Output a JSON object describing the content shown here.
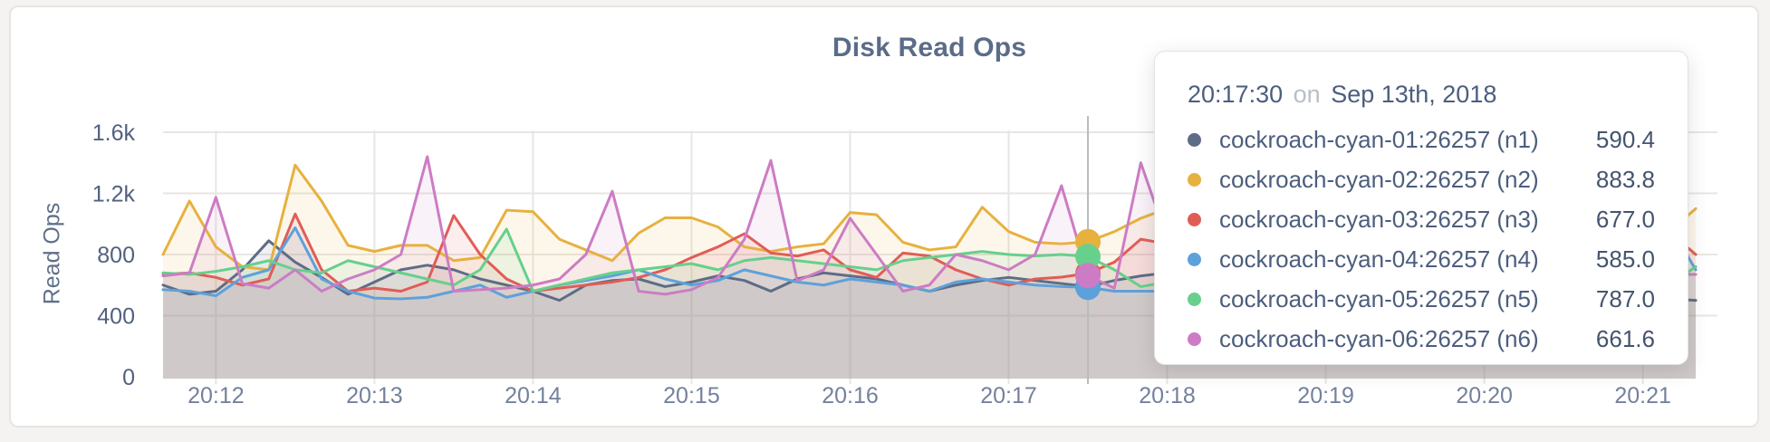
{
  "chart_data": {
    "type": "line",
    "title": "Disk Read Ops",
    "ylabel": "Read Ops",
    "x_start": "20:11:40",
    "x_interval_seconds": 10,
    "grid": true,
    "ylim": [
      0,
      1700
    ],
    "y_ticks": [
      {
        "value": 0,
        "label": "0"
      },
      {
        "value": 400,
        "label": "400"
      },
      {
        "value": 800,
        "label": "800"
      },
      {
        "value": 1200,
        "label": "1.2k"
      },
      {
        "value": 1600,
        "label": "1.6k"
      }
    ],
    "x_ticks": [
      {
        "index": 2,
        "label": "20:12"
      },
      {
        "index": 8,
        "label": "20:13"
      },
      {
        "index": 14,
        "label": "20:14"
      },
      {
        "index": 20,
        "label": "20:15"
      },
      {
        "index": 26,
        "label": "20:16"
      },
      {
        "index": 32,
        "label": "20:17"
      },
      {
        "index": 38,
        "label": "20:18"
      },
      {
        "index": 44,
        "label": "20:19"
      },
      {
        "index": 50,
        "label": "20:20"
      },
      {
        "index": 56,
        "label": "20:21"
      }
    ],
    "hover": {
      "index": 35,
      "line_color": "#bbbbbb"
    },
    "fill_opacity": 0.1,
    "series": [
      {
        "name": "cockroach-cyan-01:26257 (n1)",
        "color": "#5F6C87",
        "values": [
          600,
          540,
          560,
          700,
          890,
          750,
          650,
          540,
          620,
          700,
          730,
          700,
          640,
          600,
          560,
          500,
          600,
          630,
          640,
          590,
          620,
          660,
          630,
          560,
          640,
          680,
          660,
          640,
          600,
          560,
          600,
          630,
          650,
          630,
          610,
          590.4,
          630,
          660,
          680,
          650,
          600,
          560,
          520,
          560,
          600,
          580,
          560,
          600,
          640,
          620,
          580,
          600,
          620,
          580,
          540,
          520,
          500,
          510,
          500
        ]
      },
      {
        "name": "cockroach-cyan-02:26257 (n2)",
        "color": "#E7B13F",
        "values": [
          800,
          1150,
          850,
          720,
          700,
          1385,
          1150,
          860,
          820,
          860,
          860,
          760,
          780,
          1090,
          1080,
          900,
          830,
          760,
          940,
          1040,
          1040,
          980,
          850,
          820,
          850,
          870,
          1075,
          1060,
          880,
          830,
          850,
          1110,
          950,
          880,
          870,
          883.8,
          950,
          1037,
          1100,
          1050,
          950,
          880,
          820,
          860,
          900,
          950,
          900,
          850,
          800,
          850,
          950,
          900,
          850,
          800,
          900,
          1080,
          1060,
          950,
          1100
        ]
      },
      {
        "name": "cockroach-cyan-03:26257 (n3)",
        "color": "#E05D56",
        "values": [
          670,
          680,
          650,
          600,
          640,
          1065,
          700,
          560,
          580,
          560,
          620,
          1055,
          800,
          640,
          560,
          580,
          600,
          620,
          650,
          700,
          780,
          850,
          936,
          810,
          790,
          830,
          700,
          650,
          810,
          790,
          700,
          640,
          600,
          640,
          652,
          677,
          750,
          900,
          870,
          700,
          650,
          600,
          650,
          700,
          750,
          700,
          650,
          600,
          650,
          700,
          750,
          700,
          650,
          600,
          700,
          800,
          700,
          948,
          800
        ]
      },
      {
        "name": "cockroach-cyan-04:26257 (n4)",
        "color": "#5DA1DB",
        "values": [
          570,
          560,
          530,
          650,
          700,
          975,
          640,
          560,
          515,
          510,
          520,
          560,
          600,
          520,
          560,
          600,
          630,
          660,
          700,
          640,
          600,
          630,
          700,
          660,
          620,
          600,
          640,
          620,
          600,
          560,
          620,
          640,
          620,
          600,
          590,
          585,
          560,
          560,
          560,
          600,
          640,
          600,
          560,
          540,
          560,
          600,
          620,
          600,
          560,
          540,
          560,
          600,
          580,
          560,
          600,
          560,
          620,
          996,
          700
        ]
      },
      {
        "name": "cockroach-cyan-05:26257 (n5)",
        "color": "#66D08C",
        "values": [
          680,
          670,
          690,
          720,
          760,
          700,
          680,
          760,
          720,
          680,
          640,
          600,
          700,
          966,
          560,
          600,
          640,
          680,
          700,
          720,
          740,
          700,
          760,
          780,
          760,
          740,
          720,
          700,
          760,
          780,
          800,
          820,
          800,
          790,
          800,
          787,
          700,
          590,
          620,
          640,
          700,
          750,
          800,
          750,
          700,
          680,
          700,
          720,
          700,
          1084,
          900,
          800,
          750,
          700,
          720,
          700,
          680,
          600,
          720
        ]
      },
      {
        "name": "cockroach-cyan-06:26257 (n6)",
        "color": "#CC7CC4",
        "values": [
          660,
          680,
          1174,
          610,
          580,
          700,
          560,
          640,
          700,
          800,
          1440,
          560,
          570,
          580,
          600,
          640,
          800,
          1214,
          560,
          540,
          570,
          650,
          900,
          1415,
          628,
          700,
          1037,
          800,
          560,
          600,
          800,
          760,
          700,
          800,
          1250,
          661.6,
          580,
          1400,
          900,
          700,
          650,
          600,
          650,
          700,
          750,
          700,
          650,
          600,
          650,
          700,
          680,
          660,
          640,
          660,
          680,
          670,
          660,
          670,
          670
        ]
      }
    ]
  },
  "tooltip": {
    "time": "20:17:30",
    "conjunction": "on",
    "date": "Sep 13th, 2018",
    "rows": [
      {
        "label": "cockroach-cyan-01:26257 (n1)",
        "value": "590.4",
        "color": "#5F6C87"
      },
      {
        "label": "cockroach-cyan-02:26257 (n2)",
        "value": "883.8",
        "color": "#E7B13F"
      },
      {
        "label": "cockroach-cyan-03:26257 (n3)",
        "value": "677.0",
        "color": "#E05D56"
      },
      {
        "label": "cockroach-cyan-04:26257 (n4)",
        "value": "585.0",
        "color": "#5DA1DB"
      },
      {
        "label": "cockroach-cyan-05:26257 (n5)",
        "value": "787.0",
        "color": "#66D08C"
      },
      {
        "label": "cockroach-cyan-06:26257 (n6)",
        "value": "661.6",
        "color": "#CC7CC4"
      }
    ]
  }
}
